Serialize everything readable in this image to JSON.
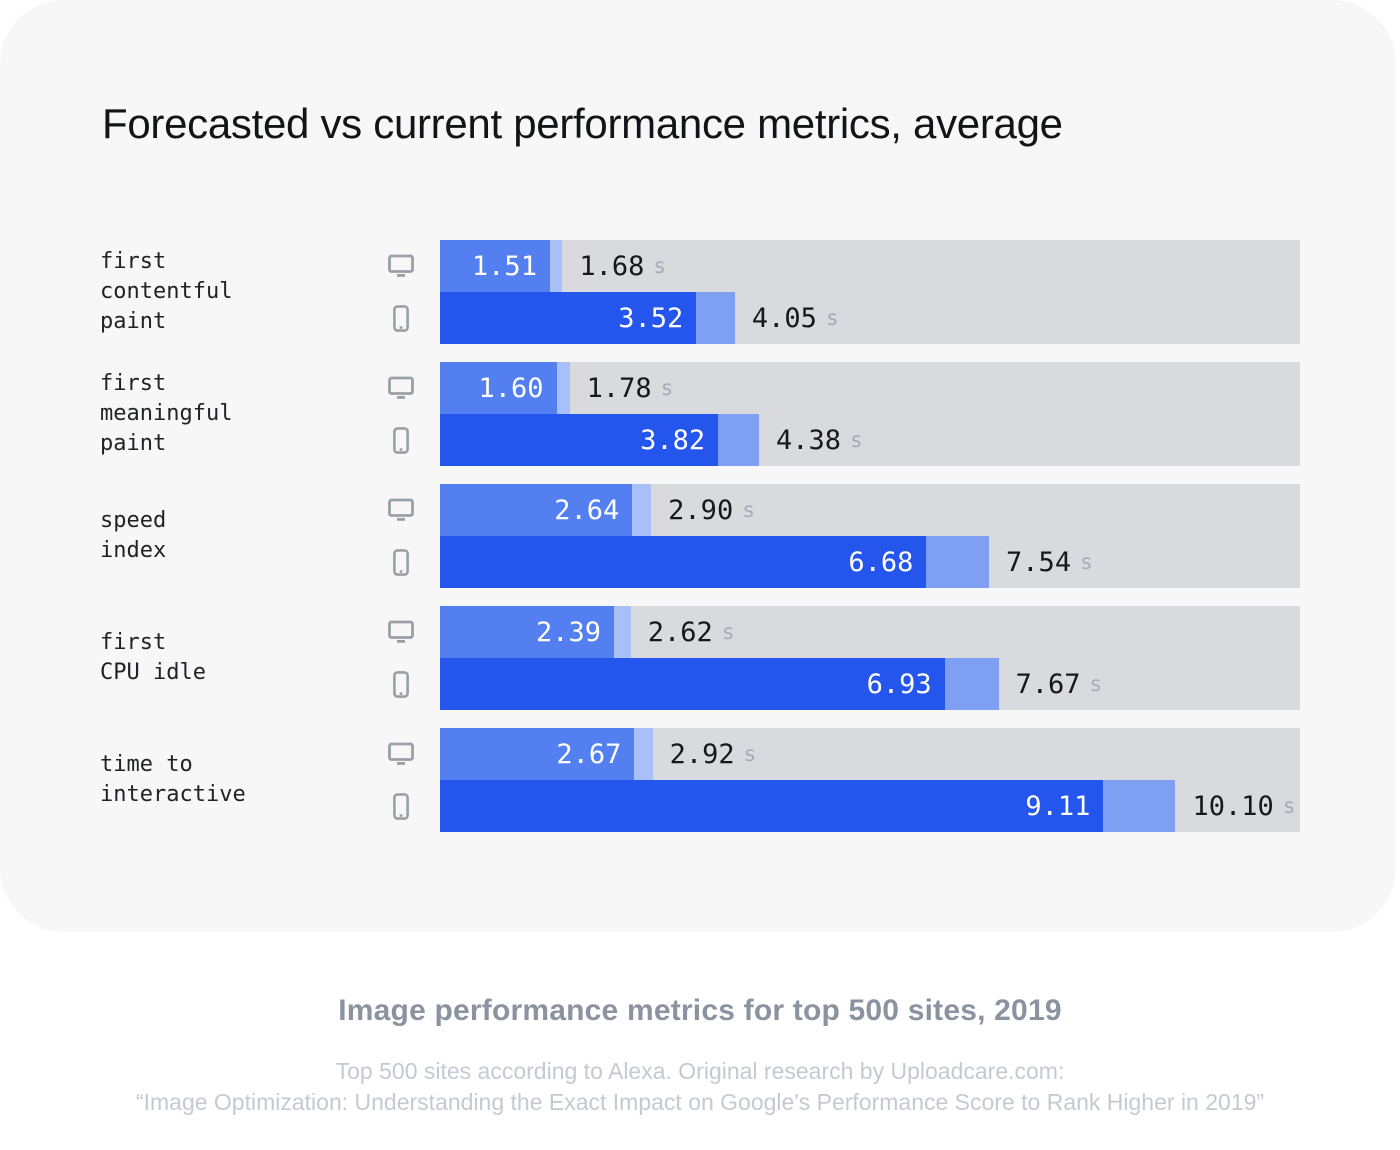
{
  "title": "Forecasted vs current performance metrics, average",
  "colors": {
    "card_bg": "#f7f7f8",
    "track": "#d9dade",
    "desktop_forecast": "#537ff0",
    "desktop_current": "#a9bff8",
    "mobile_forecast": "#2456ee",
    "mobile_current": "#7e9ff2",
    "icon": "#9aa0a8",
    "value_in_bar": "#ffffff",
    "value_on_track": "#17181a",
    "unit_text": "#a7acb4"
  },
  "chart_data": {
    "type": "bar",
    "orientation": "horizontal",
    "title": "Forecasted vs current performance metrics, average",
    "unit": "s",
    "x_max": 11.81,
    "grid": false,
    "legend": "none",
    "categories": [
      "first contentful paint",
      "first meaningful paint",
      "speed index",
      "first CPU idle",
      "time to interactive"
    ],
    "series": [
      {
        "name": "forecasted desktop",
        "values": [
          1.51,
          1.6,
          2.64,
          2.39,
          2.67
        ]
      },
      {
        "name": "current desktop",
        "values": [
          1.68,
          1.78,
          2.9,
          2.62,
          2.92
        ]
      },
      {
        "name": "forecasted mobile",
        "values": [
          3.52,
          3.82,
          6.68,
          6.93,
          9.11
        ]
      },
      {
        "name": "current mobile",
        "values": [
          4.05,
          4.38,
          7.54,
          7.67,
          10.1
        ]
      }
    ],
    "rows": [
      {
        "label_lines": [
          "first",
          "contentful",
          "paint"
        ],
        "bars": [
          {
            "device": "desktop",
            "forecast": "1.51",
            "current": "1.68"
          },
          {
            "device": "mobile",
            "forecast": "3.52",
            "current": "4.05"
          }
        ]
      },
      {
        "label_lines": [
          "first",
          "meaningful",
          "paint"
        ],
        "bars": [
          {
            "device": "desktop",
            "forecast": "1.60",
            "current": "1.78"
          },
          {
            "device": "mobile",
            "forecast": "3.82",
            "current": "4.38"
          }
        ]
      },
      {
        "label_lines": [
          "speed",
          "index"
        ],
        "bars": [
          {
            "device": "desktop",
            "forecast": "2.64",
            "current": "2.90"
          },
          {
            "device": "mobile",
            "forecast": "6.68",
            "current": "7.54"
          }
        ]
      },
      {
        "label_lines": [
          "first",
          "CPU idle"
        ],
        "bars": [
          {
            "device": "desktop",
            "forecast": "2.39",
            "current": "2.62"
          },
          {
            "device": "mobile",
            "forecast": "6.93",
            "current": "7.67"
          }
        ]
      },
      {
        "label_lines": [
          "time to",
          "interactive"
        ],
        "bars": [
          {
            "device": "desktop",
            "forecast": "2.67",
            "current": "2.92"
          },
          {
            "device": "mobile",
            "forecast": "9.11",
            "current": "10.10"
          }
        ]
      }
    ]
  },
  "footer": {
    "heading": "Image performance metrics for top 500 sites, 2019",
    "caption_line1": "Top 500 sites according to Alexa. Original research by Uploadcare.com:",
    "caption_line2": "“Image Optimization: Understanding the Exact Impact on Google's Performance Score to Rank Higher in 2019”"
  }
}
